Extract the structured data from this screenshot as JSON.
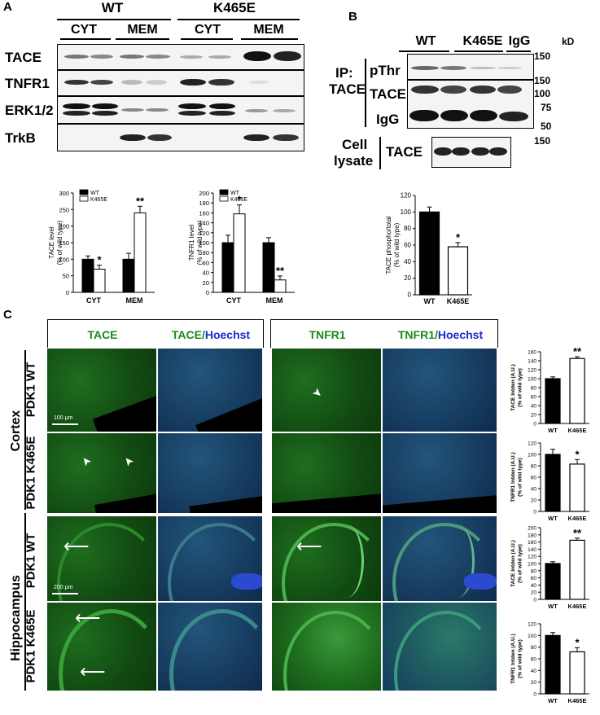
{
  "panelA": {
    "label": "A",
    "groups": [
      "WT",
      "K465E"
    ],
    "fractions": [
      "CYT",
      "MEM",
      "CYT",
      "MEM"
    ],
    "rows": [
      "TACE",
      "TNFR1",
      "ERK1/2",
      "TrkB"
    ]
  },
  "panelB": {
    "label": "B",
    "lanes": [
      "WT",
      "K465E",
      "IgG"
    ],
    "kd": "kD",
    "ip_label": "IP:",
    "ip_target": "TACE",
    "rows": [
      "pThr",
      "TACE",
      "IgG"
    ],
    "lysate_label_1": "Cell",
    "lysate_label_2": "lysate",
    "lysate_row": "TACE",
    "markers": [
      "150",
      "150",
      "100",
      "75",
      "50",
      "150"
    ]
  },
  "panelC": {
    "label": "C",
    "col_headers": {
      "tace": "TACE",
      "tace_hoechst_a": "TACE/",
      "tace_hoechst_b": "Hoechst",
      "tnfr1": "TNFR1",
      "tnfr1_hoechst_a": "TNFR1/",
      "tnfr1_hoechst_b": "Hoechst"
    },
    "regions": [
      "Cortex",
      "Hippocampus"
    ],
    "rows": [
      "PDK1 WT",
      "PDK1 K465E",
      "PDK1 WT",
      "PDK1 K465E"
    ],
    "scalebars": [
      "100 μm",
      "200 μm"
    ]
  },
  "chart_data": [
    {
      "type": "bar",
      "id": "A-TACE",
      "ylabel": "TACE level\n(% of wild type)",
      "categories": [
        "CYT",
        "MEM"
      ],
      "series": [
        {
          "name": "WT",
          "values": [
            100,
            100
          ],
          "errors": [
            10,
            18
          ],
          "color": "#000000"
        },
        {
          "name": "K465E",
          "values": [
            70,
            240
          ],
          "errors": [
            12,
            20
          ],
          "color": "#ffffff"
        }
      ],
      "ylim": [
        0,
        300
      ],
      "yticks": [
        0,
        50,
        100,
        150,
        200,
        250,
        300
      ],
      "stars": [
        {
          "cat": 0,
          "series": 1,
          "text": "*"
        },
        {
          "cat": 1,
          "series": 1,
          "text": "**"
        }
      ]
    },
    {
      "type": "bar",
      "id": "A-TNFR1",
      "ylabel": "TNFR1 level\n(% of wild type)",
      "categories": [
        "CYT",
        "MEM"
      ],
      "series": [
        {
          "name": "WT",
          "values": [
            100,
            100
          ],
          "errors": [
            15,
            10
          ],
          "color": "#000000"
        },
        {
          "name": "K465E",
          "values": [
            158,
            25
          ],
          "errors": [
            18,
            8
          ],
          "color": "#ffffff"
        }
      ],
      "ylim": [
        0,
        200
      ],
      "yticks": [
        0,
        20,
        40,
        60,
        80,
        100,
        120,
        140,
        160,
        180,
        200
      ],
      "stars": [
        {
          "cat": 0,
          "series": 1,
          "text": "*"
        },
        {
          "cat": 1,
          "series": 1,
          "text": "**"
        }
      ]
    },
    {
      "type": "bar",
      "id": "B-phospho",
      "ylabel": "TACE phospho/total\n(% of wild type)",
      "categories": [
        "WT",
        "K465E"
      ],
      "values": [
        100,
        58
      ],
      "errors": [
        6,
        5
      ],
      "colors": [
        "#000000",
        "#ffffff"
      ],
      "ylim": [
        0,
        120
      ],
      "yticks": [
        0,
        20,
        40,
        60,
        80,
        100,
        120
      ],
      "stars": [
        {
          "cat": 1,
          "text": "*"
        }
      ]
    },
    {
      "type": "bar",
      "id": "C-cortex-TACE",
      "ylabel": "TACE Intden (A.U.)\n(% of wild type)",
      "categories": [
        "WT",
        "K465E"
      ],
      "values": [
        100,
        145
      ],
      "errors": [
        4,
        4
      ],
      "colors": [
        "#000000",
        "#ffffff"
      ],
      "ylim": [
        0,
        160
      ],
      "yticks": [
        0,
        20,
        40,
        60,
        80,
        100,
        120,
        140,
        160
      ],
      "stars": [
        {
          "cat": 1,
          "text": "**"
        }
      ]
    },
    {
      "type": "bar",
      "id": "C-cortex-TNFR1",
      "ylabel": "TNFR1 Intden (A.U.)\n(% of wild type)",
      "categories": [
        "WT",
        "K465E"
      ],
      "values": [
        100,
        83
      ],
      "errors": [
        9,
        8
      ],
      "colors": [
        "#000000",
        "#ffffff"
      ],
      "ylim": [
        0,
        120
      ],
      "yticks": [
        0,
        20,
        40,
        60,
        80,
        100,
        120
      ],
      "stars": [
        {
          "cat": 1,
          "text": "*"
        }
      ]
    },
    {
      "type": "bar",
      "id": "C-hippo-TACE",
      "ylabel": "TACE Intden (A.U.)\n(% of wild type)",
      "categories": [
        "WT",
        "K465E"
      ],
      "values": [
        100,
        165
      ],
      "errors": [
        5,
        6
      ],
      "colors": [
        "#000000",
        "#ffffff"
      ],
      "ylim": [
        0,
        200
      ],
      "yticks": [
        0,
        20,
        40,
        60,
        80,
        100,
        120,
        140,
        160,
        180,
        200
      ],
      "stars": [
        {
          "cat": 1,
          "text": "**"
        }
      ]
    },
    {
      "type": "bar",
      "id": "C-hippo-TNFR1",
      "ylabel": "TNFR1 Intden (A.U.)\n(% of wild type)",
      "categories": [
        "WT",
        "K465E"
      ],
      "values": [
        100,
        72
      ],
      "errors": [
        5,
        7
      ],
      "colors": [
        "#000000",
        "#ffffff"
      ],
      "ylim": [
        0,
        120
      ],
      "yticks": [
        0,
        20,
        40,
        60,
        80,
        100,
        120
      ],
      "stars": [
        {
          "cat": 1,
          "text": "*"
        }
      ]
    }
  ]
}
